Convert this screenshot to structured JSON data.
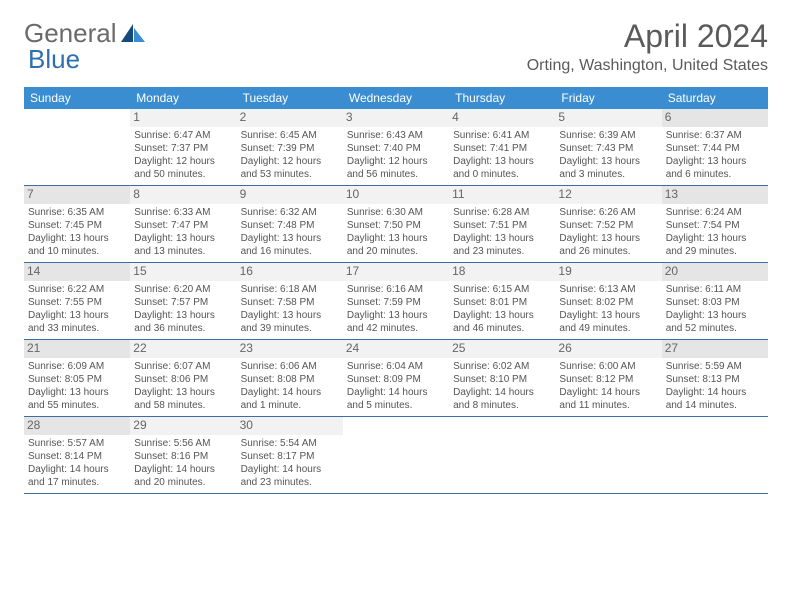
{
  "brand": {
    "part1": "General",
    "part2": "Blue"
  },
  "title": "April 2024",
  "location": "Orting, Washington, United States",
  "colors": {
    "header_bg": "#3a8dd0",
    "header_text": "#ffffff",
    "border": "#3a6fa0",
    "daynum_bg": "#f2f2f2",
    "daynum_bg_shaded": "#e5e5e5",
    "text": "#555555",
    "brand_gray": "#6a6a6a",
    "brand_blue": "#2f6fb0"
  },
  "daysOfWeek": [
    "Sunday",
    "Monday",
    "Tuesday",
    "Wednesday",
    "Thursday",
    "Friday",
    "Saturday"
  ],
  "weeks": [
    [
      {
        "n": "",
        "sunrise": "",
        "sunset": "",
        "daylight": ""
      },
      {
        "n": "1",
        "sunrise": "Sunrise: 6:47 AM",
        "sunset": "Sunset: 7:37 PM",
        "daylight": "Daylight: 12 hours and 50 minutes."
      },
      {
        "n": "2",
        "sunrise": "Sunrise: 6:45 AM",
        "sunset": "Sunset: 7:39 PM",
        "daylight": "Daylight: 12 hours and 53 minutes."
      },
      {
        "n": "3",
        "sunrise": "Sunrise: 6:43 AM",
        "sunset": "Sunset: 7:40 PM",
        "daylight": "Daylight: 12 hours and 56 minutes."
      },
      {
        "n": "4",
        "sunrise": "Sunrise: 6:41 AM",
        "sunset": "Sunset: 7:41 PM",
        "daylight": "Daylight: 13 hours and 0 minutes."
      },
      {
        "n": "5",
        "sunrise": "Sunrise: 6:39 AM",
        "sunset": "Sunset: 7:43 PM",
        "daylight": "Daylight: 13 hours and 3 minutes."
      },
      {
        "n": "6",
        "sunrise": "Sunrise: 6:37 AM",
        "sunset": "Sunset: 7:44 PM",
        "daylight": "Daylight: 13 hours and 6 minutes."
      }
    ],
    [
      {
        "n": "7",
        "sunrise": "Sunrise: 6:35 AM",
        "sunset": "Sunset: 7:45 PM",
        "daylight": "Daylight: 13 hours and 10 minutes."
      },
      {
        "n": "8",
        "sunrise": "Sunrise: 6:33 AM",
        "sunset": "Sunset: 7:47 PM",
        "daylight": "Daylight: 13 hours and 13 minutes."
      },
      {
        "n": "9",
        "sunrise": "Sunrise: 6:32 AM",
        "sunset": "Sunset: 7:48 PM",
        "daylight": "Daylight: 13 hours and 16 minutes."
      },
      {
        "n": "10",
        "sunrise": "Sunrise: 6:30 AM",
        "sunset": "Sunset: 7:50 PM",
        "daylight": "Daylight: 13 hours and 20 minutes."
      },
      {
        "n": "11",
        "sunrise": "Sunrise: 6:28 AM",
        "sunset": "Sunset: 7:51 PM",
        "daylight": "Daylight: 13 hours and 23 minutes."
      },
      {
        "n": "12",
        "sunrise": "Sunrise: 6:26 AM",
        "sunset": "Sunset: 7:52 PM",
        "daylight": "Daylight: 13 hours and 26 minutes."
      },
      {
        "n": "13",
        "sunrise": "Sunrise: 6:24 AM",
        "sunset": "Sunset: 7:54 PM",
        "daylight": "Daylight: 13 hours and 29 minutes."
      }
    ],
    [
      {
        "n": "14",
        "sunrise": "Sunrise: 6:22 AM",
        "sunset": "Sunset: 7:55 PM",
        "daylight": "Daylight: 13 hours and 33 minutes."
      },
      {
        "n": "15",
        "sunrise": "Sunrise: 6:20 AM",
        "sunset": "Sunset: 7:57 PM",
        "daylight": "Daylight: 13 hours and 36 minutes."
      },
      {
        "n": "16",
        "sunrise": "Sunrise: 6:18 AM",
        "sunset": "Sunset: 7:58 PM",
        "daylight": "Daylight: 13 hours and 39 minutes."
      },
      {
        "n": "17",
        "sunrise": "Sunrise: 6:16 AM",
        "sunset": "Sunset: 7:59 PM",
        "daylight": "Daylight: 13 hours and 42 minutes."
      },
      {
        "n": "18",
        "sunrise": "Sunrise: 6:15 AM",
        "sunset": "Sunset: 8:01 PM",
        "daylight": "Daylight: 13 hours and 46 minutes."
      },
      {
        "n": "19",
        "sunrise": "Sunrise: 6:13 AM",
        "sunset": "Sunset: 8:02 PM",
        "daylight": "Daylight: 13 hours and 49 minutes."
      },
      {
        "n": "20",
        "sunrise": "Sunrise: 6:11 AM",
        "sunset": "Sunset: 8:03 PM",
        "daylight": "Daylight: 13 hours and 52 minutes."
      }
    ],
    [
      {
        "n": "21",
        "sunrise": "Sunrise: 6:09 AM",
        "sunset": "Sunset: 8:05 PM",
        "daylight": "Daylight: 13 hours and 55 minutes."
      },
      {
        "n": "22",
        "sunrise": "Sunrise: 6:07 AM",
        "sunset": "Sunset: 8:06 PM",
        "daylight": "Daylight: 13 hours and 58 minutes."
      },
      {
        "n": "23",
        "sunrise": "Sunrise: 6:06 AM",
        "sunset": "Sunset: 8:08 PM",
        "daylight": "Daylight: 14 hours and 1 minute."
      },
      {
        "n": "24",
        "sunrise": "Sunrise: 6:04 AM",
        "sunset": "Sunset: 8:09 PM",
        "daylight": "Daylight: 14 hours and 5 minutes."
      },
      {
        "n": "25",
        "sunrise": "Sunrise: 6:02 AM",
        "sunset": "Sunset: 8:10 PM",
        "daylight": "Daylight: 14 hours and 8 minutes."
      },
      {
        "n": "26",
        "sunrise": "Sunrise: 6:00 AM",
        "sunset": "Sunset: 8:12 PM",
        "daylight": "Daylight: 14 hours and 11 minutes."
      },
      {
        "n": "27",
        "sunrise": "Sunrise: 5:59 AM",
        "sunset": "Sunset: 8:13 PM",
        "daylight": "Daylight: 14 hours and 14 minutes."
      }
    ],
    [
      {
        "n": "28",
        "sunrise": "Sunrise: 5:57 AM",
        "sunset": "Sunset: 8:14 PM",
        "daylight": "Daylight: 14 hours and 17 minutes."
      },
      {
        "n": "29",
        "sunrise": "Sunrise: 5:56 AM",
        "sunset": "Sunset: 8:16 PM",
        "daylight": "Daylight: 14 hours and 20 minutes."
      },
      {
        "n": "30",
        "sunrise": "Sunrise: 5:54 AM",
        "sunset": "Sunset: 8:17 PM",
        "daylight": "Daylight: 14 hours and 23 minutes."
      },
      {
        "n": "",
        "sunrise": "",
        "sunset": "",
        "daylight": ""
      },
      {
        "n": "",
        "sunrise": "",
        "sunset": "",
        "daylight": ""
      },
      {
        "n": "",
        "sunrise": "",
        "sunset": "",
        "daylight": ""
      },
      {
        "n": "",
        "sunrise": "",
        "sunset": "",
        "daylight": ""
      }
    ]
  ]
}
